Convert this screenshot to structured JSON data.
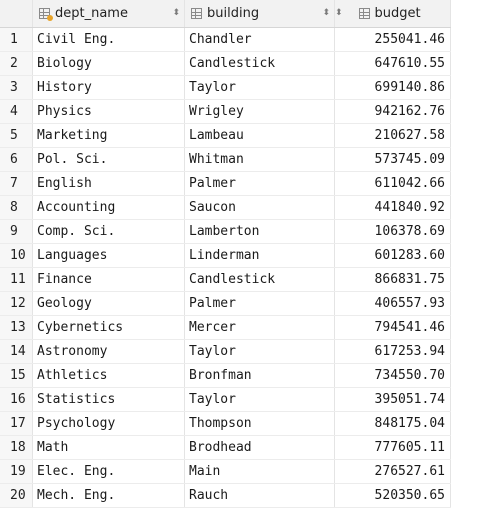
{
  "columns": {
    "dept_name": {
      "label": "dept_name",
      "icon": "primary-key-column-icon"
    },
    "building": {
      "label": "building",
      "icon": "column-icon"
    },
    "budget": {
      "label": "budget",
      "icon": "column-icon"
    },
    "sort_glyph": "⬍"
  },
  "rows": [
    {
      "n": "1",
      "dept_name": "Civil Eng.",
      "building": "Chandler",
      "budget": "255041.46"
    },
    {
      "n": "2",
      "dept_name": "Biology",
      "building": "Candlestick",
      "budget": "647610.55"
    },
    {
      "n": "3",
      "dept_name": "History",
      "building": "Taylor",
      "budget": "699140.86"
    },
    {
      "n": "4",
      "dept_name": "Physics",
      "building": "Wrigley",
      "budget": "942162.76"
    },
    {
      "n": "5",
      "dept_name": "Marketing",
      "building": "Lambeau",
      "budget": "210627.58"
    },
    {
      "n": "6",
      "dept_name": "Pol. Sci.",
      "building": "Whitman",
      "budget": "573745.09"
    },
    {
      "n": "7",
      "dept_name": "English",
      "building": "Palmer",
      "budget": "611042.66"
    },
    {
      "n": "8",
      "dept_name": "Accounting",
      "building": "Saucon",
      "budget": "441840.92"
    },
    {
      "n": "9",
      "dept_name": "Comp. Sci.",
      "building": "Lamberton",
      "budget": "106378.69"
    },
    {
      "n": "10",
      "dept_name": "Languages",
      "building": "Linderman",
      "budget": "601283.60"
    },
    {
      "n": "11",
      "dept_name": "Finance",
      "building": "Candlestick",
      "budget": "866831.75"
    },
    {
      "n": "12",
      "dept_name": "Geology",
      "building": "Palmer",
      "budget": "406557.93"
    },
    {
      "n": "13",
      "dept_name": "Cybernetics",
      "building": "Mercer",
      "budget": "794541.46"
    },
    {
      "n": "14",
      "dept_name": "Astronomy",
      "building": "Taylor",
      "budget": "617253.94"
    },
    {
      "n": "15",
      "dept_name": "Athletics",
      "building": "Bronfman",
      "budget": "734550.70"
    },
    {
      "n": "16",
      "dept_name": "Statistics",
      "building": "Taylor",
      "budget": "395051.74"
    },
    {
      "n": "17",
      "dept_name": "Psychology",
      "building": "Thompson",
      "budget": "848175.04"
    },
    {
      "n": "18",
      "dept_name": "Math",
      "building": "Brodhead",
      "budget": "777605.11"
    },
    {
      "n": "19",
      "dept_name": "Elec. Eng.",
      "building": "Main",
      "budget": "276527.61"
    },
    {
      "n": "20",
      "dept_name": "Mech. Eng.",
      "building": "Rauch",
      "budget": "520350.65"
    }
  ]
}
